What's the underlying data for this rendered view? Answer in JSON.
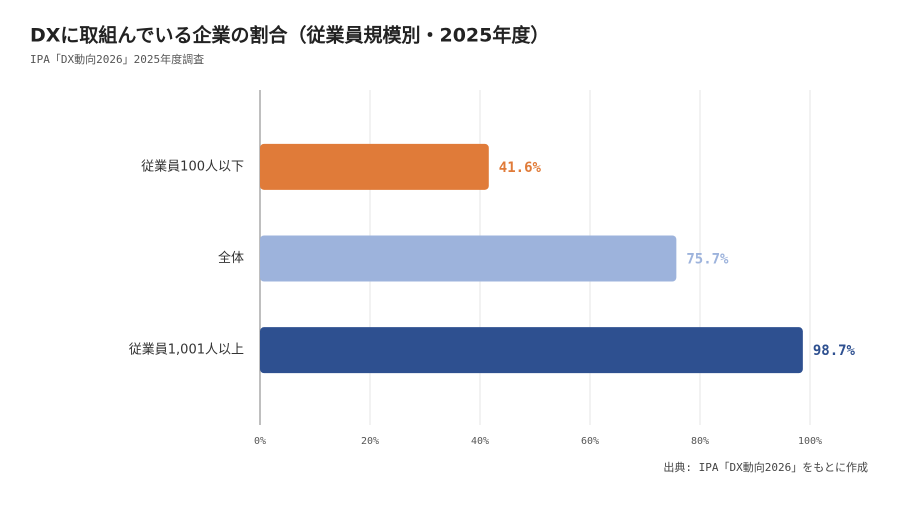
{
  "chart_data": {
    "type": "bar",
    "orientation": "horizontal",
    "title": "DXに取組んでいる企業の割合（従業員規模別・2025年度）",
    "subtitle": "IPA「DX動向2026」2025年度調査",
    "source": "出典: IPA「DX動向2026」をもとに作成",
    "categories": [
      "従業員100人以下",
      "全体",
      "従業員1,001人以上"
    ],
    "values": [
      41.6,
      75.7,
      98.7
    ],
    "value_labels": [
      "41.6%",
      "75.7%",
      "98.7%"
    ],
    "colors": [
      "#e07b39",
      "#9db3dc",
      "#2e5090"
    ],
    "xlim": [
      0,
      100
    ],
    "xticks": [
      {
        "value": 0,
        "label": "0%"
      },
      {
        "value": 20,
        "label": "20%"
      },
      {
        "value": 40,
        "label": "40%"
      },
      {
        "value": 60,
        "label": "60%"
      },
      {
        "value": 80,
        "label": "80%"
      },
      {
        "value": 100,
        "label": "100%"
      }
    ],
    "grid": true
  }
}
